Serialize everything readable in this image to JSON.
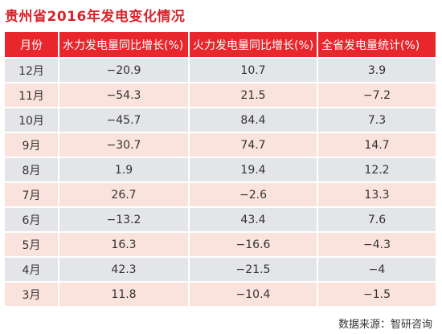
{
  "title": "贵州省2016年发电变化情况",
  "headers": {
    "month": "月份",
    "hydro": "水力发电量同比增长(%)",
    "thermal": "火力发电量同比增长(%)",
    "total": "全省发电量统计(%)"
  },
  "rows": [
    {
      "month": "12月",
      "hydro": "−20.9",
      "thermal": "10.7",
      "total": "3.9"
    },
    {
      "month": "11月",
      "hydro": "−54.3",
      "thermal": "21.5",
      "total": "−7.2"
    },
    {
      "month": "10月",
      "hydro": "−45.7",
      "thermal": "84.4",
      "total": "7.3"
    },
    {
      "month": "9月",
      "hydro": "−30.7",
      "thermal": "74.7",
      "total": "14.7"
    },
    {
      "month": "8月",
      "hydro": "1.9",
      "thermal": "19.4",
      "total": "12.2"
    },
    {
      "month": "7月",
      "hydro": "26.7",
      "thermal": "−2.6",
      "total": "13.3"
    },
    {
      "month": "6月",
      "hydro": "−13.2",
      "thermal": "43.4",
      "total": "7.6"
    },
    {
      "month": "5月",
      "hydro": "16.3",
      "thermal": "−16.6",
      "total": "−4.3"
    },
    {
      "month": "4月",
      "hydro": "42.3",
      "thermal": "−21.5",
      "total": "−4"
    },
    {
      "month": "3月",
      "hydro": "11.8",
      "thermal": "−10.4",
      "total": "−1.5"
    }
  ],
  "source": "数据来源：智研咨询",
  "colors": {
    "accent": "#e8262c",
    "title": "#d9232b",
    "row_gray": "#e4e5e9",
    "row_pink": "#fae3dc"
  }
}
